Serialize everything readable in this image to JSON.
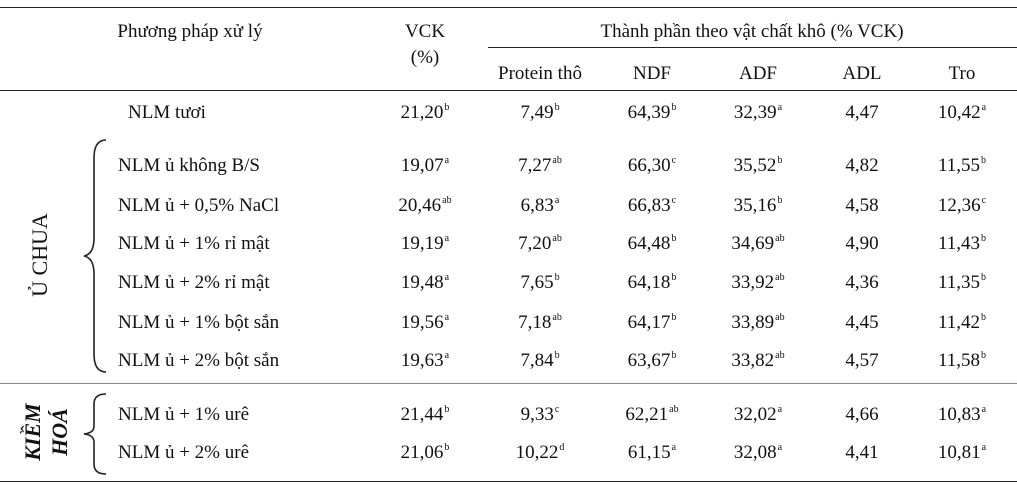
{
  "table": {
    "header": {
      "method": "Phương pháp xử lý",
      "vck": "VCK",
      "vck_unit": "(%)",
      "composition": "Thành phần  theo vật chất  khô (% VCK)",
      "columns": [
        "Protein thô",
        "NDF",
        "ADF",
        "ADL",
        "Tro"
      ]
    },
    "groups": [
      {
        "label": "Ủ CHUA"
      },
      {
        "label_line1": "KIỀM",
        "label_line2": "HOÁ"
      }
    ],
    "rows": [
      {
        "name": "NLM tươi",
        "cells": [
          [
            "21,20",
            "b"
          ],
          [
            "7,49",
            "b"
          ],
          [
            "64,39",
            "b"
          ],
          [
            "32,39",
            "a"
          ],
          [
            "4,47",
            ""
          ],
          [
            "10,42",
            "a"
          ]
        ]
      },
      {
        "name": "NLM ủ không B/S",
        "cells": [
          [
            "19,07",
            "a"
          ],
          [
            "7,27",
            "ab"
          ],
          [
            "66,30",
            "c"
          ],
          [
            "35,52",
            "b"
          ],
          [
            "4,82",
            ""
          ],
          [
            "11,55",
            "b"
          ]
        ]
      },
      {
        "name": "NLM ủ + 0,5% NaCl",
        "cells": [
          [
            "20,46",
            "ab"
          ],
          [
            "6,83",
            "a"
          ],
          [
            "66,83",
            "c"
          ],
          [
            "35,16",
            "b"
          ],
          [
            "4,58",
            ""
          ],
          [
            "12,36",
            "c"
          ]
        ]
      },
      {
        "name": "NLM ủ + 1% rỉ mật",
        "cells": [
          [
            "19,19",
            "a"
          ],
          [
            "7,20",
            "ab"
          ],
          [
            "64,48",
            "b"
          ],
          [
            "34,69",
            "ab"
          ],
          [
            "4,90",
            ""
          ],
          [
            "11,43",
            "b"
          ]
        ]
      },
      {
        "name": "NLM ủ + 2% rỉ mật",
        "cells": [
          [
            "19,48",
            "a"
          ],
          [
            "7,65",
            "b"
          ],
          [
            "64,18",
            "b"
          ],
          [
            "33,92",
            "ab"
          ],
          [
            "4,36",
            ""
          ],
          [
            "11,35",
            "b"
          ]
        ]
      },
      {
        "name": "NLM ủ + 1% bột sắn",
        "cells": [
          [
            "19,56",
            "a"
          ],
          [
            "7,18",
            "ab"
          ],
          [
            "64,17",
            "b"
          ],
          [
            "33,89",
            "ab"
          ],
          [
            "4,45",
            ""
          ],
          [
            "11,42",
            "b"
          ]
        ]
      },
      {
        "name": "NLM ủ + 2% bột sắn",
        "cells": [
          [
            "19,63",
            "a"
          ],
          [
            "7,84",
            "b"
          ],
          [
            "63,67",
            "b"
          ],
          [
            "33,82",
            "ab"
          ],
          [
            "4,57",
            ""
          ],
          [
            "11,58",
            "b"
          ]
        ]
      },
      {
        "name": "NLM ủ + 1% urê",
        "cells": [
          [
            "21,44",
            "b"
          ],
          [
            "9,33",
            "c"
          ],
          [
            "62,21",
            "ab"
          ],
          [
            "32,02",
            "a"
          ],
          [
            "4,66",
            ""
          ],
          [
            "10,83",
            "a"
          ]
        ]
      },
      {
        "name": "NLM ủ + 2% urê",
        "cells": [
          [
            "21,06",
            "b"
          ],
          [
            "10,22",
            "d"
          ],
          [
            "61,15",
            "a"
          ],
          [
            "32,08",
            "a"
          ],
          [
            "4,41",
            ""
          ],
          [
            "10,81",
            "a"
          ]
        ]
      }
    ]
  }
}
